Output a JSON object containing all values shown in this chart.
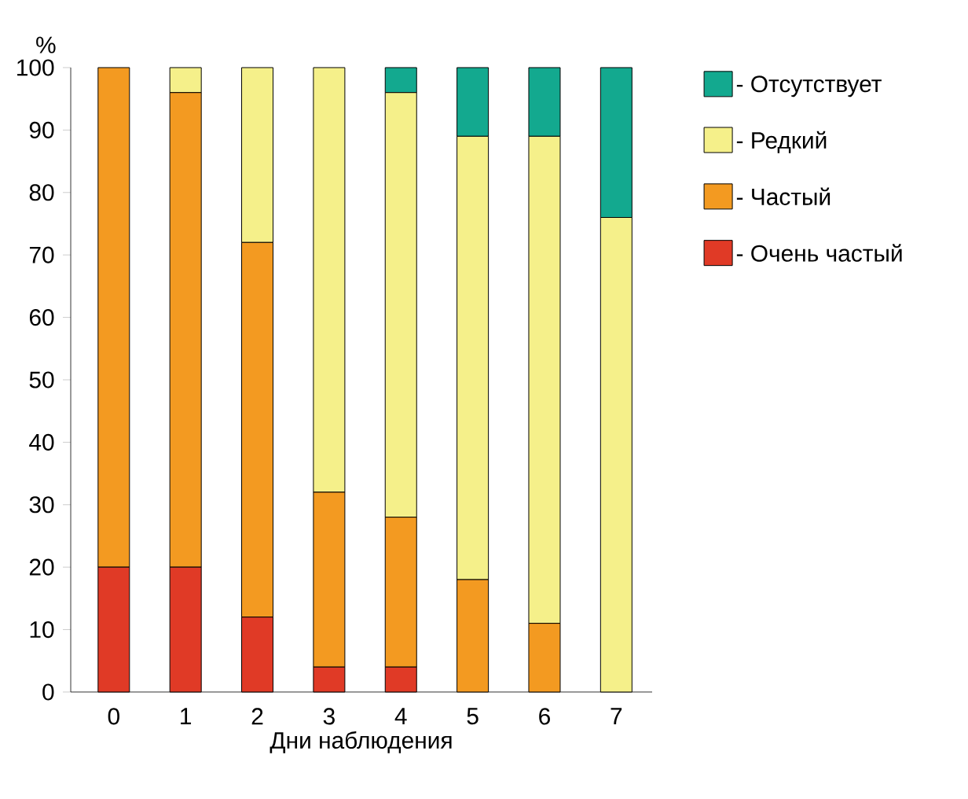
{
  "chart_data": {
    "type": "bar",
    "stacked": true,
    "xlabel": "Дни наблюдения",
    "ylabel": "%",
    "categories": [
      "0",
      "1",
      "2",
      "3",
      "4",
      "5",
      "6",
      "7"
    ],
    "series": [
      {
        "name": "- Очень частый",
        "color": "#e03a26",
        "values": [
          20,
          20,
          12,
          4,
          4,
          0,
          0,
          0
        ]
      },
      {
        "name": "- Частый",
        "color": "#f39a21",
        "values": [
          80,
          76,
          60,
          28,
          24,
          18,
          11,
          0
        ]
      },
      {
        "name": "- Редкий",
        "color": "#f5f08a",
        "values": [
          0,
          4,
          28,
          68,
          68,
          71,
          78,
          76
        ]
      },
      {
        "name": "- Отсутствует",
        "color": "#13a98f",
        "values": [
          0,
          0,
          0,
          0,
          4,
          11,
          11,
          24
        ]
      }
    ],
    "ylim": [
      0,
      100
    ],
    "yticks": [
      0,
      10,
      20,
      30,
      40,
      50,
      60,
      70,
      80,
      90,
      100
    ],
    "legend": "right"
  }
}
